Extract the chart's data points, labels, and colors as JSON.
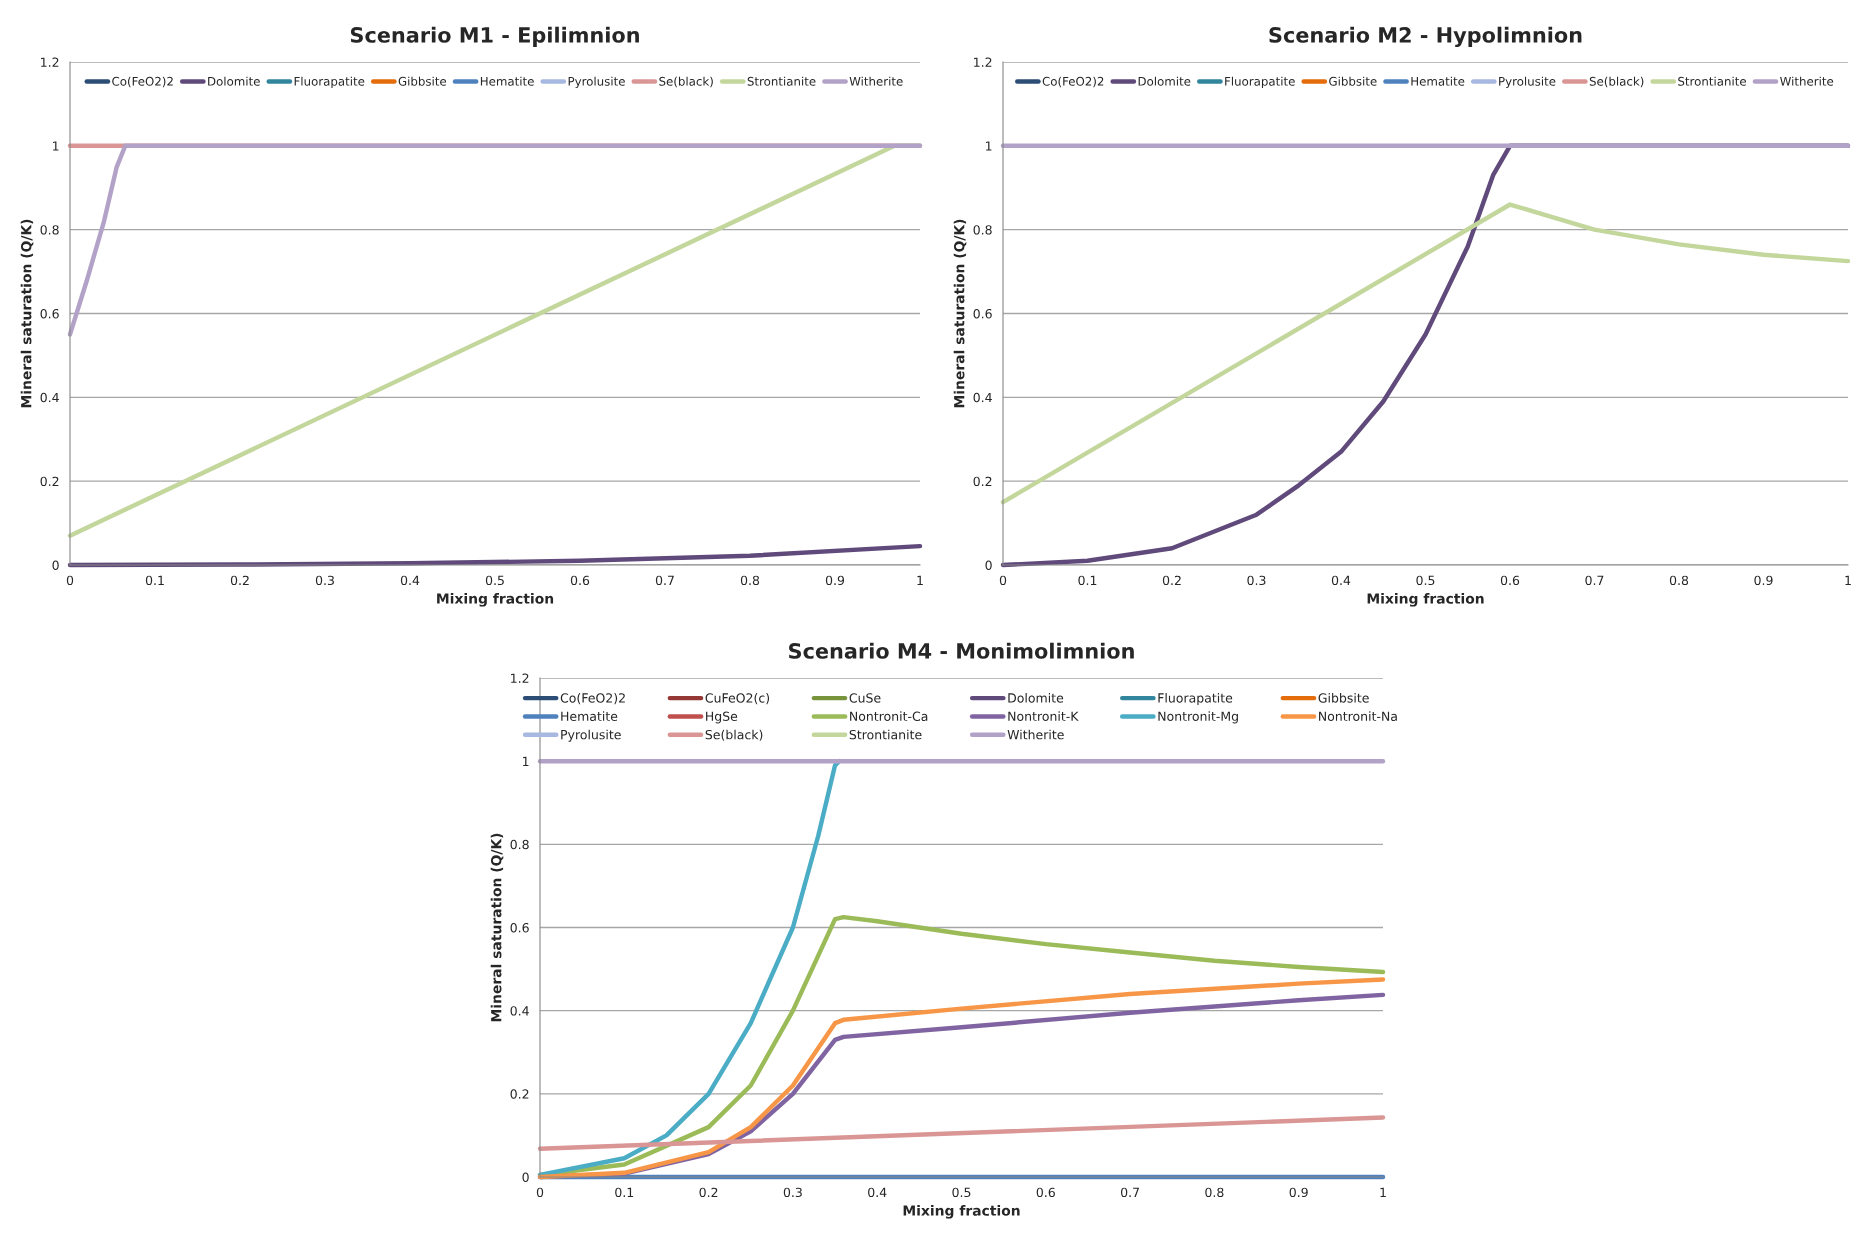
{
  "chart_data": [
    {
      "type": "line",
      "title": "Scenario M1 - Epilimnion",
      "xlabel": "Mixing fraction",
      "ylabel": "Mineral saturation (Q/K)",
      "xlim": [
        0,
        1
      ],
      "ylim": [
        0,
        1.2
      ],
      "xticks": [
        0,
        0.1,
        0.2,
        0.3,
        0.4,
        0.5,
        0.6,
        0.7,
        0.8,
        0.9,
        1
      ],
      "yticks": [
        0,
        0.2,
        0.4,
        0.6,
        0.8,
        1,
        1.2
      ],
      "grid": "y",
      "legend": "top",
      "series": [
        {
          "name": "Co(FeO2)2",
          "color": "#2c4d75",
          "values": [
            null
          ]
        },
        {
          "name": "Dolomite",
          "color": "#604a7b",
          "x": [
            0,
            0.2,
            0.4,
            0.6,
            0.8,
            1
          ],
          "values": [
            0,
            0.001,
            0.004,
            0.01,
            0.022,
            0.045
          ]
        },
        {
          "name": "Fluorapatite",
          "color": "#31859c",
          "values": [
            null
          ]
        },
        {
          "name": "Gibbsite",
          "color": "#e46c0a",
          "values": [
            null
          ]
        },
        {
          "name": "Hematite",
          "color": "#4f81bd",
          "values": [
            null
          ]
        },
        {
          "name": "Pyrolusite",
          "color": "#a7b9e0",
          "values": [
            null
          ]
        },
        {
          "name": "Se(black)",
          "color": "#d99694",
          "x": [
            0,
            1
          ],
          "values": [
            1,
            1
          ]
        },
        {
          "name": "Strontianite",
          "color": "#c3d69b",
          "x": [
            0,
            0.97,
            1
          ],
          "values": [
            0.07,
            1,
            1
          ]
        },
        {
          "name": "Witherite",
          "color": "#b3a2c7",
          "x": [
            0,
            0.02,
            0.04,
            0.055,
            0.065,
            1
          ],
          "values": [
            0.55,
            0.68,
            0.82,
            0.95,
            1,
            1
          ]
        }
      ]
    },
    {
      "type": "line",
      "title": "Scenario M2 - Hypolimnion",
      "xlabel": "Mixing fraction",
      "ylabel": "Mineral saturation (Q/K)",
      "xlim": [
        0,
        1
      ],
      "ylim": [
        0,
        1.2
      ],
      "xticks": [
        0,
        0.1,
        0.2,
        0.3,
        0.4,
        0.5,
        0.6,
        0.7,
        0.8,
        0.9,
        1
      ],
      "yticks": [
        0,
        0.2,
        0.4,
        0.6,
        0.8,
        1,
        1.2
      ],
      "grid": "y",
      "legend": "top",
      "series": [
        {
          "name": "Co(FeO2)2",
          "color": "#2c4d75",
          "values": [
            null
          ]
        },
        {
          "name": "Dolomite",
          "color": "#604a7b",
          "x": [
            0,
            0.1,
            0.2,
            0.3,
            0.35,
            0.4,
            0.45,
            0.5,
            0.55,
            0.58,
            0.6,
            1
          ],
          "values": [
            0,
            0.01,
            0.04,
            0.12,
            0.19,
            0.27,
            0.39,
            0.55,
            0.76,
            0.93,
            1,
            1
          ]
        },
        {
          "name": "Fluorapatite",
          "color": "#31859c",
          "values": [
            null
          ]
        },
        {
          "name": "Gibbsite",
          "color": "#e46c0a",
          "values": [
            null
          ]
        },
        {
          "name": "Hematite",
          "color": "#4f81bd",
          "values": [
            null
          ]
        },
        {
          "name": "Pyrolusite",
          "color": "#a7b9e0",
          "values": [
            null
          ]
        },
        {
          "name": "Se(black)",
          "color": "#d99694",
          "values": [
            null
          ]
        },
        {
          "name": "Strontianite",
          "color": "#c3d69b",
          "x": [
            0,
            0.6,
            0.65,
            0.7,
            0.8,
            0.9,
            1
          ],
          "values": [
            0.15,
            0.86,
            0.83,
            0.8,
            0.765,
            0.74,
            0.725
          ]
        },
        {
          "name": "Witherite",
          "color": "#b3a2c7",
          "x": [
            0,
            1
          ],
          "values": [
            1,
            1
          ]
        }
      ]
    },
    {
      "type": "line",
      "title": "Scenario M4 - Monimolimnion",
      "xlabel": "Mixing fraction",
      "ylabel": "Mineral saturation (Q/K)",
      "xlim": [
        0,
        1
      ],
      "ylim": [
        0,
        1.2
      ],
      "xticks": [
        0,
        0.1,
        0.2,
        0.3,
        0.4,
        0.5,
        0.6,
        0.7,
        0.8,
        0.9,
        1
      ],
      "yticks": [
        0,
        0.2,
        0.4,
        0.6,
        0.8,
        1,
        1.2
      ],
      "grid": "y",
      "legend": "top",
      "series": [
        {
          "name": "Co(FeO2)2",
          "color": "#2c4d75",
          "values": [
            null
          ]
        },
        {
          "name": "CuFeO2(c)",
          "color": "#953735",
          "values": [
            null
          ]
        },
        {
          "name": "CuSe",
          "color": "#77933c",
          "values": [
            null
          ]
        },
        {
          "name": "Dolomite",
          "color": "#604a7b",
          "values": [
            null
          ]
        },
        {
          "name": "Fluorapatite",
          "color": "#31859c",
          "values": [
            null
          ]
        },
        {
          "name": "Gibbsite",
          "color": "#e46c0a",
          "values": [
            null
          ]
        },
        {
          "name": "Hematite",
          "color": "#4f81bd",
          "x": [
            0,
            1
          ],
          "values": [
            0,
            0
          ]
        },
        {
          "name": "HgSe",
          "color": "#c0504d",
          "values": [
            null
          ]
        },
        {
          "name": "Nontronit-Ca",
          "color": "#9bbb59",
          "x": [
            0,
            0.1,
            0.2,
            0.25,
            0.3,
            0.35,
            0.36,
            0.4,
            0.5,
            0.6,
            0.7,
            0.8,
            0.9,
            1
          ],
          "values": [
            0.005,
            0.03,
            0.12,
            0.22,
            0.4,
            0.62,
            0.625,
            0.615,
            0.585,
            0.56,
            0.54,
            0.52,
            0.505,
            0.493
          ]
        },
        {
          "name": "Nontronit-K",
          "color": "#8064a2",
          "x": [
            0,
            0.1,
            0.2,
            0.25,
            0.3,
            0.35,
            0.36,
            0.5,
            0.7,
            0.9,
            1
          ],
          "values": [
            0,
            0.008,
            0.055,
            0.11,
            0.2,
            0.33,
            0.337,
            0.36,
            0.395,
            0.425,
            0.438
          ]
        },
        {
          "name": "Nontronit-Mg",
          "color": "#4bacc6",
          "x": [
            0,
            0.1,
            0.15,
            0.2,
            0.25,
            0.3,
            0.33,
            0.35,
            0.355
          ],
          "values": [
            0.005,
            0.045,
            0.1,
            0.2,
            0.37,
            0.6,
            0.82,
            0.99,
            1
          ]
        },
        {
          "name": "Nontronit-Na",
          "color": "#f79646",
          "x": [
            0,
            0.1,
            0.2,
            0.25,
            0.3,
            0.35,
            0.36,
            0.5,
            0.7,
            0.9,
            1
          ],
          "values": [
            0,
            0.01,
            0.06,
            0.12,
            0.22,
            0.37,
            0.378,
            0.405,
            0.44,
            0.465,
            0.475
          ]
        },
        {
          "name": "Pyrolusite",
          "color": "#a7b9e0",
          "values": [
            null
          ]
        },
        {
          "name": "Se(black)",
          "color": "#d99694",
          "x": [
            0,
            1
          ],
          "values": [
            0.068,
            0.143
          ]
        },
        {
          "name": "Strontianite",
          "color": "#c3d69b",
          "values": [
            null
          ]
        },
        {
          "name": "Witherite",
          "color": "#b3a2c7",
          "x": [
            0,
            1
          ],
          "values": [
            1,
            1
          ]
        }
      ]
    }
  ]
}
